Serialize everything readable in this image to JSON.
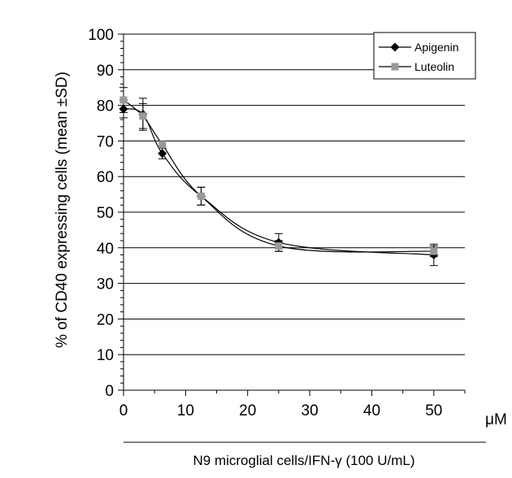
{
  "chart_data": {
    "type": "line",
    "ylabel": "% of CD40 expressing cells (mean ±SD)",
    "xlabel": "N9 microglial cells/IFN-γ (100 U/mL)",
    "x_unit": "μM",
    "xlim": [
      0,
      55
    ],
    "ylim": [
      0,
      100
    ],
    "x_ticks": [
      0,
      10,
      20,
      30,
      40,
      50
    ],
    "y_ticks": [
      0,
      10,
      20,
      30,
      40,
      50,
      60,
      70,
      80,
      90,
      100
    ],
    "grid": "horizontal",
    "legend_position": "top-right",
    "series": [
      {
        "name": "Apigenin",
        "marker": "diamond",
        "color": "#000000",
        "x": [
          0,
          3.125,
          6.25,
          12.5,
          25,
          50
        ],
        "y": [
          79,
          77.5,
          66.5,
          54.5,
          41.5,
          38
        ],
        "error": [
          2.5,
          4.5,
          1.5,
          2.5,
          2.5,
          3
        ]
      },
      {
        "name": "Luteolin",
        "marker": "square",
        "color": "#999999",
        "x": [
          0,
          3.125,
          6.25,
          12.5,
          25,
          50
        ],
        "y": [
          81.5,
          77,
          69,
          54.5,
          40.5,
          39
        ],
        "error": [
          3.5,
          3.5,
          1,
          2.5,
          1.5,
          1.5
        ]
      }
    ]
  }
}
